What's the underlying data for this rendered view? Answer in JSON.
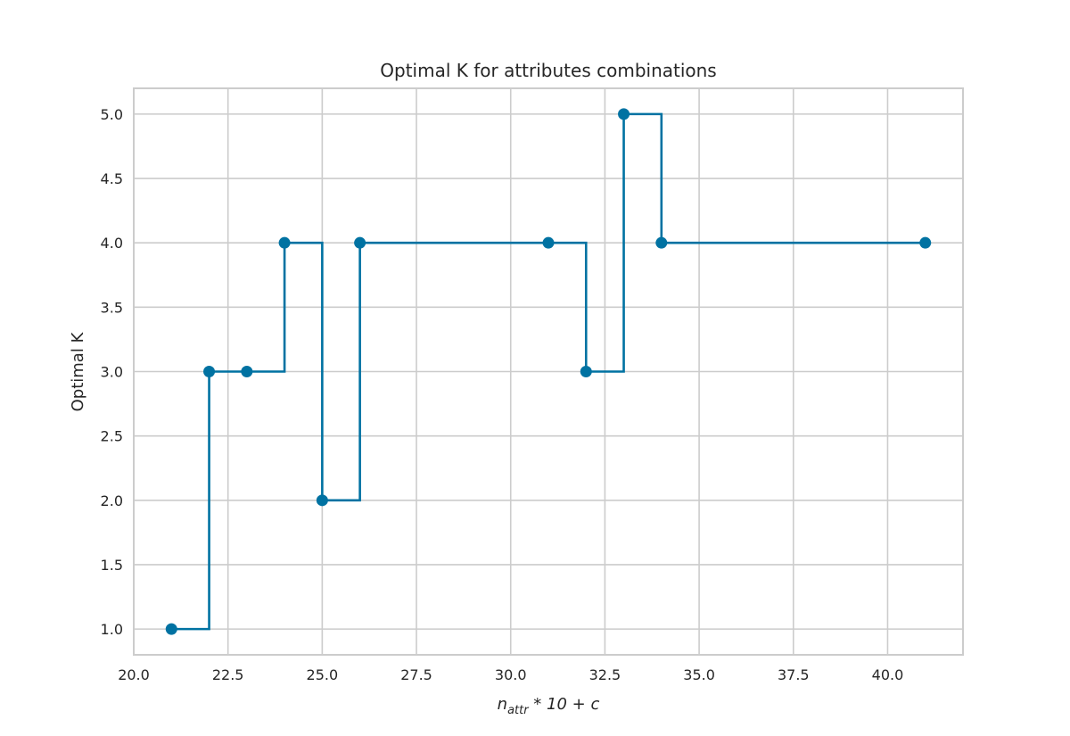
{
  "chart_data": {
    "type": "line",
    "step": "post",
    "title": "Optimal K for attributes combinations",
    "xlabel_parts": {
      "base": "n",
      "sub": "attr",
      "rest": " * 10 + c"
    },
    "ylabel": "Optimal K",
    "xlim": [
      20.0,
      42.0
    ],
    "ylim": [
      0.8,
      5.2
    ],
    "xticks": [
      20.0,
      22.5,
      25.0,
      27.5,
      30.0,
      32.5,
      35.0,
      37.5,
      40.0
    ],
    "xtick_labels": [
      "20.0",
      "22.5",
      "25.0",
      "27.5",
      "30.0",
      "32.5",
      "35.0",
      "37.5",
      "40.0"
    ],
    "yticks": [
      1.0,
      1.5,
      2.0,
      2.5,
      3.0,
      3.5,
      4.0,
      4.5,
      5.0
    ],
    "ytick_labels": [
      "1.0",
      "1.5",
      "2.0",
      "2.5",
      "3.0",
      "3.5",
      "4.0",
      "4.5",
      "5.0"
    ],
    "grid": true,
    "series": [
      {
        "x": [
          21,
          22,
          23,
          24,
          25,
          26,
          31,
          32,
          33,
          34,
          41
        ],
        "y": [
          1,
          3,
          3,
          4,
          2,
          4,
          4,
          3,
          5,
          4,
          4
        ],
        "color": "#0072a2"
      }
    ]
  }
}
